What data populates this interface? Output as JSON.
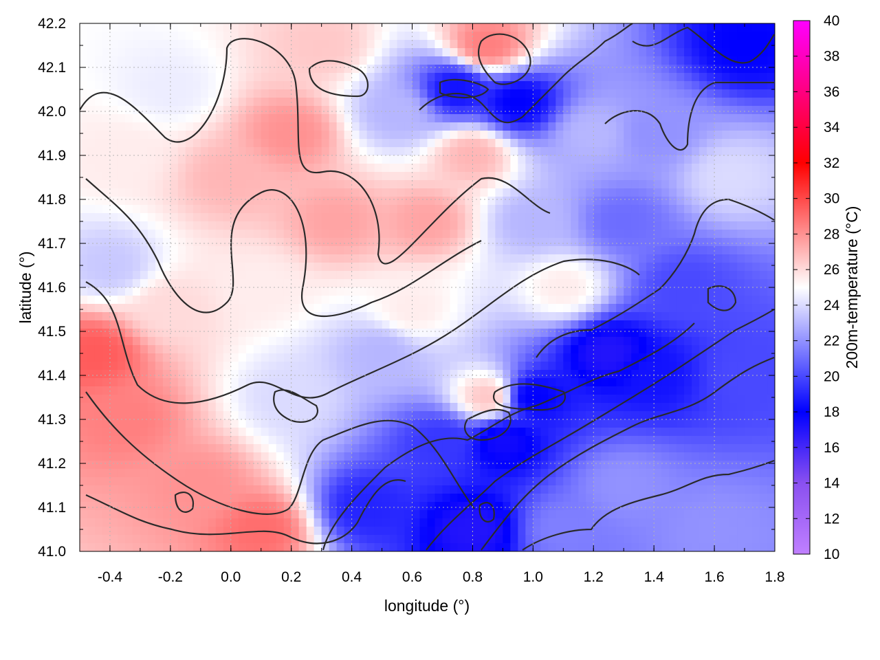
{
  "chart_data": {
    "type": "heatmap",
    "xlabel": "longitude (°)",
    "ylabel": "latitude (°)",
    "colorbar_label": "200m-temperature (°C)",
    "xlim": [
      -0.5,
      1.8
    ],
    "ylim": [
      41.0,
      42.2
    ],
    "color_range": [
      10,
      40
    ],
    "x_ticks": [
      -0.4,
      -0.2,
      0.0,
      0.2,
      0.4,
      0.6,
      0.8,
      1.0,
      1.2,
      1.4,
      1.6,
      1.8
    ],
    "x_tick_labels": [
      "-0.4",
      "-0.2",
      "0.0",
      "0.2",
      "0.4",
      "0.6",
      "0.8",
      "1.0",
      "1.2",
      "1.4",
      "1.6",
      "1.8"
    ],
    "y_ticks": [
      41.0,
      41.1,
      41.2,
      41.3,
      41.4,
      41.5,
      41.6,
      41.7,
      41.8,
      41.9,
      42.0,
      42.1,
      42.2
    ],
    "y_tick_labels": [
      "41.0",
      "41.1",
      "41.2",
      "41.3",
      "41.4",
      "41.5",
      "41.6",
      "41.7",
      "41.8",
      "41.9",
      "42.0",
      "42.1",
      "42.2"
    ],
    "colorbar_ticks": [
      10,
      12,
      14,
      16,
      18,
      20,
      22,
      24,
      26,
      28,
      30,
      32,
      34,
      36,
      38,
      40
    ],
    "colorbar_tick_labels": [
      "10",
      "12",
      "14",
      "16",
      "18",
      "20",
      "22",
      "24",
      "26",
      "28",
      "30",
      "32",
      "34",
      "36",
      "38",
      "40"
    ],
    "colormap": [
      [
        10,
        "#c080ff"
      ],
      [
        14,
        "#8a50f0"
      ],
      [
        18,
        "#0000ff"
      ],
      [
        25,
        "#ffffff"
      ],
      [
        32,
        "#ff0000"
      ],
      [
        40,
        "#ff00ff"
      ]
    ],
    "grid": true,
    "field_samples": [
      {
        "lon": -0.45,
        "lat": 41.45,
        "temp": 29.5
      },
      {
        "lon": -0.35,
        "lat": 41.3,
        "temp": 28.5
      },
      {
        "lon": -0.1,
        "lat": 41.15,
        "temp": 28.0
      },
      {
        "lon": 0.1,
        "lat": 41.05,
        "temp": 29.0
      },
      {
        "lon": -0.2,
        "lat": 41.55,
        "temp": 26.0
      },
      {
        "lon": -0.4,
        "lat": 41.65,
        "temp": 23.5
      },
      {
        "lon": -0.2,
        "lat": 42.05,
        "temp": 24.5
      },
      {
        "lon": 0.0,
        "lat": 41.85,
        "temp": 27.0
      },
      {
        "lon": 0.2,
        "lat": 41.95,
        "temp": 28.0
      },
      {
        "lon": 0.35,
        "lat": 41.75,
        "temp": 27.5
      },
      {
        "lon": 0.1,
        "lat": 41.6,
        "temp": 25.5
      },
      {
        "lon": 0.2,
        "lat": 41.35,
        "temp": 24.0
      },
      {
        "lon": 0.45,
        "lat": 41.1,
        "temp": 19.0
      },
      {
        "lon": 0.5,
        "lat": 41.45,
        "temp": 23.0
      },
      {
        "lon": 0.55,
        "lat": 42.0,
        "temp": 23.0
      },
      {
        "lon": 0.65,
        "lat": 41.75,
        "temp": 27.5
      },
      {
        "lon": 0.8,
        "lat": 41.9,
        "temp": 27.0
      },
      {
        "lon": 0.85,
        "lat": 42.15,
        "temp": 28.5
      },
      {
        "lon": 0.75,
        "lat": 42.05,
        "temp": 18.5
      },
      {
        "lon": 0.95,
        "lat": 42.02,
        "temp": 18.0
      },
      {
        "lon": 1.0,
        "lat": 41.75,
        "temp": 23.0
      },
      {
        "lon": 1.1,
        "lat": 41.6,
        "temp": 25.5
      },
      {
        "lon": 0.8,
        "lat": 41.05,
        "temp": 17.0
      },
      {
        "lon": 0.9,
        "lat": 41.25,
        "temp": 17.5
      },
      {
        "lon": 0.85,
        "lat": 41.35,
        "temp": 26.5
      },
      {
        "lon": 1.0,
        "lat": 41.35,
        "temp": 18.0
      },
      {
        "lon": 1.25,
        "lat": 41.45,
        "temp": 17.0
      },
      {
        "lon": 1.4,
        "lat": 41.4,
        "temp": 18.5
      },
      {
        "lon": 1.3,
        "lat": 41.15,
        "temp": 22.0
      },
      {
        "lon": 1.6,
        "lat": 41.05,
        "temp": 22.0
      },
      {
        "lon": 1.5,
        "lat": 41.6,
        "temp": 20.0
      },
      {
        "lon": 1.3,
        "lat": 41.75,
        "temp": 21.0
      },
      {
        "lon": 1.4,
        "lat": 41.95,
        "temp": 22.0
      },
      {
        "lon": 1.7,
        "lat": 42.15,
        "temp": 18.0
      },
      {
        "lon": 1.65,
        "lat": 41.85,
        "temp": 24.0
      },
      {
        "lon": 1.7,
        "lat": 41.4,
        "temp": 20.0
      },
      {
        "lon": 1.2,
        "lat": 41.95,
        "temp": 23.0
      },
      {
        "lon": 0.3,
        "lat": 42.15,
        "temp": 26.5
      },
      {
        "lon": -0.35,
        "lat": 41.9,
        "temp": 25.5
      },
      {
        "lon": 0.6,
        "lat": 41.55,
        "temp": 25.5
      },
      {
        "lon": 0.7,
        "lat": 41.25,
        "temp": 19.5
      },
      {
        "lon": 1.1,
        "lat": 41.05,
        "temp": 21.5
      }
    ]
  }
}
